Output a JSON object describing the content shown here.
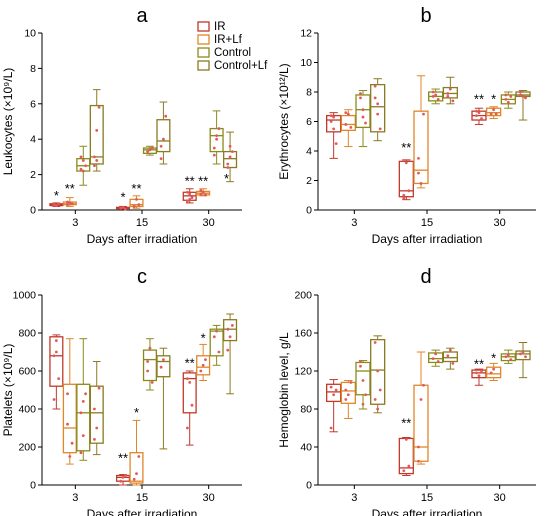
{
  "colors": {
    "ir": "#c0392b",
    "ir_lf": "#e0852a",
    "control": "#8a8a1a",
    "control_lf": "#8a7a22",
    "dots": "#e05a5a"
  },
  "legend": {
    "entries": [
      {
        "label": "IR",
        "color_key": "ir"
      },
      {
        "label": "IR+Lf",
        "color_key": "ir_lf"
      },
      {
        "label": "Control",
        "color_key": "control"
      },
      {
        "label": "Control+Lf",
        "color_key": "control_lf"
      }
    ]
  },
  "chart_data": [
    {
      "panel": "a",
      "type": "box",
      "xlabel": "Days after irradiation",
      "ylabel": "Leukocytes (×10⁹/L)",
      "ylim": [
        0,
        10
      ],
      "yticks": [
        0,
        2,
        4,
        6,
        8,
        10
      ],
      "categories": [
        "3",
        "15",
        "30"
      ],
      "series": [
        {
          "name": "IR",
          "stats": [
            [
              0.2,
              0.25,
              0.3,
              0.35,
              0.4
            ],
            [
              0.05,
              0.08,
              0.1,
              0.15,
              0.2
            ],
            [
              0.4,
              0.55,
              0.8,
              1.0,
              1.2
            ]
          ]
        },
        {
          "name": "IR+Lf",
          "stats": [
            [
              0.2,
              0.3,
              0.35,
              0.45,
              0.7
            ],
            [
              0.1,
              0.2,
              0.3,
              0.6,
              0.8
            ],
            [
              0.8,
              0.85,
              0.95,
              1.05,
              1.2
            ]
          ]
        },
        {
          "name": "Control",
          "stats": [
            [
              1.4,
              2.2,
              2.5,
              2.9,
              3.6
            ],
            [
              3.1,
              3.2,
              3.4,
              3.5,
              3.6
            ],
            [
              2.6,
              3.3,
              4.2,
              4.6,
              5.6
            ]
          ]
        },
        {
          "name": "Control+Lf",
          "stats": [
            [
              2.2,
              2.6,
              3.0,
              5.9,
              6.8
            ],
            [
              2.6,
              3.3,
              3.9,
              5.1,
              6.1
            ],
            [
              1.6,
              2.4,
              2.9,
              3.3,
              4.4
            ]
          ]
        }
      ],
      "points": [
        [
          [
            0.3,
            0.25,
            0.35,
            0.3
          ],
          [
            0.1,
            0.15,
            0.05,
            0.1
          ],
          [
            0.5,
            0.9,
            0.7,
            1.0,
            0.6
          ]
        ],
        [
          [
            0.3,
            0.4,
            0.35,
            0.45
          ],
          [
            0.2,
            0.6,
            0.3,
            0.2
          ],
          [
            0.9,
            1.0,
            0.85,
            1.1
          ]
        ],
        [
          [
            2.3,
            2.8,
            2.5,
            3.0,
            2.2
          ],
          [
            3.3,
            3.4,
            3.5
          ],
          [
            3.5,
            4.2,
            4.6,
            3.1,
            4.0
          ]
        ],
        [
          [
            2.5,
            4.5,
            5.8,
            3.0,
            2.8
          ],
          [
            3.6,
            4.0,
            5.3,
            2.9
          ],
          [
            2.6,
            3.0,
            3.3,
            2.4,
            3.6
          ]
        ]
      ],
      "annotations": [
        {
          "text": "*",
          "cat": 0,
          "series": 0,
          "y": 0.8
        },
        {
          "text": "**",
          "cat": 0,
          "series": 1,
          "y": 1.2
        },
        {
          "text": "*",
          "cat": 1,
          "series": 0,
          "y": 0.7
        },
        {
          "text": "**",
          "cat": 1,
          "series": 1,
          "y": 1.2
        },
        {
          "text": "**",
          "cat": 2,
          "series": 0,
          "y": 1.6
        },
        {
          "text": "**",
          "cat": 2,
          "series": 1,
          "y": 1.6
        },
        {
          "text": "*",
          "cat": 2,
          "series": 1,
          "dx": 0.35,
          "y": 1.75
        }
      ]
    },
    {
      "panel": "b",
      "type": "box",
      "xlabel": "Days after irradiation",
      "ylabel": "Erythrocytes (×10¹²/L)",
      "ylim": [
        0,
        12
      ],
      "yticks": [
        0,
        2,
        4,
        6,
        8,
        10,
        12
      ],
      "categories": [
        "3",
        "15",
        "30"
      ],
      "series": [
        {
          "name": "IR",
          "stats": [
            [
              3.5,
              5.3,
              6.1,
              6.4,
              6.6
            ],
            [
              0.7,
              0.9,
              1.3,
              3.3,
              3.4
            ],
            [
              5.8,
              6.1,
              6.4,
              6.7,
              6.9
            ]
          ]
        },
        {
          "name": "IR+Lf",
          "stats": [
            [
              4.3,
              5.4,
              5.8,
              6.4,
              6.8
            ],
            [
              1.5,
              1.8,
              2.7,
              6.7,
              9.1
            ],
            [
              6.2,
              6.4,
              6.6,
              6.9,
              7.0
            ]
          ]
        },
        {
          "name": "Control",
          "stats": [
            [
              4.3,
              5.6,
              6.8,
              7.8,
              8.1
            ],
            [
              7.2,
              7.4,
              7.7,
              8.0,
              8.2
            ],
            [
              6.9,
              7.2,
              7.5,
              7.8,
              8.0
            ]
          ]
        },
        {
          "name": "Control+Lf",
          "stats": [
            [
              4.7,
              5.3,
              7.0,
              8.5,
              8.9
            ],
            [
              7.2,
              7.6,
              7.9,
              8.3,
              9.0
            ],
            [
              6.1,
              7.7,
              7.8,
              8.0,
              8.1
            ]
          ]
        }
      ],
      "points": [
        [
          [
            6.0,
            6.3,
            4.5,
            6.4,
            5.5
          ],
          [
            1.0,
            3.2,
            1.3,
            0.8
          ],
          [
            6.4,
            6.6,
            6.2,
            6.7
          ]
        ],
        [
          [
            5.8,
            6.5,
            5.6,
            6.6
          ],
          [
            2.5,
            1.8,
            6.5,
            3.5
          ],
          [
            6.5,
            6.8,
            6.5
          ]
        ],
        [
          [
            7.6,
            6.8,
            5.9,
            7.9,
            6.3
          ],
          [
            7.7,
            7.8,
            7.5,
            8.0
          ],
          [
            7.5,
            7.3,
            7.7,
            7.8
          ]
        ],
        [
          [
            7.6,
            6.5,
            5.5,
            8.4,
            7.2
          ],
          [
            7.9,
            8.2,
            7.4,
            7.7
          ],
          [
            7.8,
            7.7,
            7.6,
            8.0
          ]
        ]
      ],
      "annotations": [
        {
          "text": "**",
          "cat": 1,
          "series": 0,
          "y": 4.2
        },
        {
          "text": "**",
          "cat": 2,
          "series": 0,
          "y": 7.5
        },
        {
          "text": "*",
          "cat": 2,
          "series": 1,
          "y": 7.5
        }
      ]
    },
    {
      "panel": "c",
      "type": "box",
      "xlabel": "Days after irradiation",
      "ylabel": "Platelets (×10⁹/L)",
      "ylim": [
        0,
        1000
      ],
      "yticks": [
        0,
        200,
        400,
        600,
        800,
        1000
      ],
      "categories": [
        "3",
        "15",
        "30"
      ],
      "series": [
        {
          "name": "IR",
          "stats": [
            [
              400,
              520,
              680,
              780,
              790
            ],
            [
              0,
              20,
              40,
              50,
              55
            ],
            [
              210,
              380,
              560,
              590,
              600
            ]
          ]
        },
        {
          "name": "IR+Lf",
          "stats": [
            [
              110,
              170,
              300,
              530,
              770
            ],
            [
              0,
              10,
              20,
              170,
              340
            ],
            [
              550,
              580,
              620,
              680,
              740
            ]
          ]
        },
        {
          "name": "Control",
          "stats": [
            [
              130,
              180,
              380,
              530,
              770
            ],
            [
              500,
              550,
              660,
              710,
              770
            ],
            [
              630,
              680,
              810,
              820,
              840
            ]
          ]
        },
        {
          "name": "Control+Lf",
          "stats": [
            [
              160,
              220,
              380,
              520,
              650
            ],
            [
              190,
              570,
              650,
              680,
              720
            ],
            [
              480,
              760,
              820,
              870,
              900
            ]
          ]
        }
      ],
      "points": [
        [
          [
            680,
            760,
            560,
            450,
            700
          ],
          [
            20,
            40,
            50
          ],
          [
            560,
            540,
            420,
            300
          ]
        ],
        [
          [
            320,
            150,
            220,
            480
          ],
          [
            30,
            60,
            150
          ],
          [
            600,
            630,
            660
          ]
        ],
        [
          [
            380,
            260,
            480,
            170,
            440
          ],
          [
            650,
            720,
            540,
            600
          ],
          [
            780,
            810,
            700
          ]
        ],
        [
          [
            400,
            300,
            510,
            240
          ],
          [
            620,
            660
          ],
          [
            820,
            780,
            840,
            710
          ]
        ]
      ],
      "annotations": [
        {
          "text": "**",
          "cat": 1,
          "series": 0,
          "y": 140
        },
        {
          "text": "*",
          "cat": 1,
          "series": 1,
          "y": 380
        },
        {
          "text": "**",
          "cat": 2,
          "series": 0,
          "y": 640
        },
        {
          "text": "*",
          "cat": 2,
          "series": 1,
          "y": 770
        }
      ]
    },
    {
      "panel": "d",
      "type": "box",
      "xlabel": "Days after irradiation",
      "ylabel": "Hemoglobin level, g/L",
      "ylim": [
        0,
        200
      ],
      "yticks": [
        0,
        40,
        80,
        120,
        160,
        200
      ],
      "categories": [
        "3",
        "15",
        "30"
      ],
      "series": [
        {
          "name": "IR",
          "stats": [
            [
              56,
              88,
              98,
              106,
              111
            ],
            [
              10,
              12,
              18,
              49,
              50
            ],
            [
              105,
              113,
              118,
              121,
              122
            ]
          ]
        },
        {
          "name": "IR+Lf",
          "stats": [
            [
              70,
              86,
              99,
              108,
              110
            ],
            [
              22,
              25,
              40,
              105,
              140
            ],
            [
              110,
              113,
              117,
              124,
              128
            ]
          ]
        },
        {
          "name": "Control",
          "stats": [
            [
              80,
              95,
              120,
              129,
              131
            ],
            [
              125,
              129,
              133,
              139,
              142
            ],
            [
              128,
              131,
              135,
              138,
              142
            ]
          ]
        },
        {
          "name": "Control+Lf",
          "stats": [
            [
              76,
              85,
              121,
              153,
              157
            ],
            [
              122,
              130,
              134,
              140,
              144
            ],
            [
              113,
              132,
              138,
              141,
              150
            ]
          ]
        }
      ],
      "points": [
        [
          [
            103,
            95,
            100,
            60
          ],
          [
            15,
            48,
            20
          ],
          [
            118,
            115,
            120
          ]
        ],
        [
          [
            100,
            95,
            108,
            90
          ],
          [
            40,
            90,
            105,
            25
          ],
          [
            118,
            122
          ]
        ],
        [
          [
            125,
            110,
            95,
            130,
            85
          ],
          [
            133,
            138,
            130
          ],
          [
            135,
            137,
            132
          ]
        ],
        [
          [
            150,
            120,
            100,
            90,
            80
          ],
          [
            136,
            142,
            128
          ],
          [
            138,
            140,
            135
          ]
        ]
      ],
      "annotations": [
        {
          "text": "**",
          "cat": 1,
          "series": 0,
          "y": 65
        },
        {
          "text": "**",
          "cat": 2,
          "series": 0,
          "y": 127
        },
        {
          "text": "*",
          "cat": 2,
          "series": 1,
          "y": 133
        }
      ]
    }
  ]
}
